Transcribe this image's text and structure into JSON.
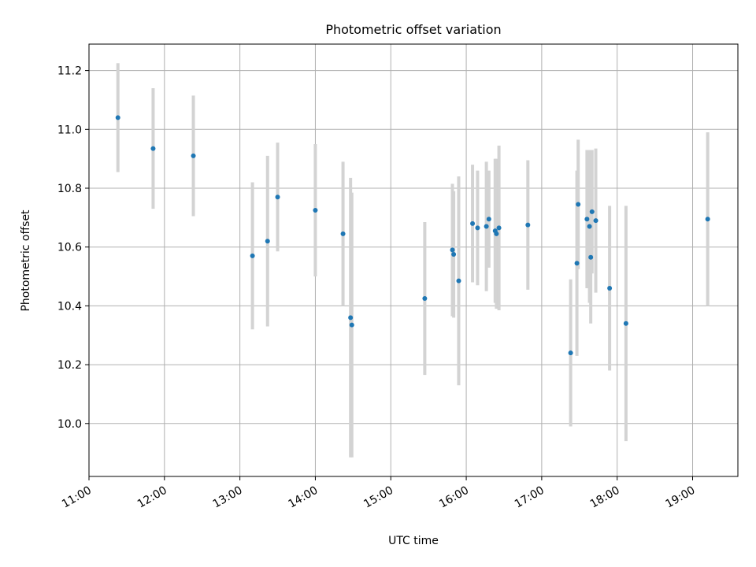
{
  "chart_data": {
    "type": "scatter",
    "title": "Photometric offset variation",
    "xlabel": "UTC time",
    "ylabel": "Photometric offset",
    "xlim": [
      "11:00",
      "19:36"
    ],
    "ylim": [
      9.82,
      11.29
    ],
    "x_ticks": [
      "11:00",
      "12:00",
      "13:00",
      "14:00",
      "15:00",
      "16:00",
      "17:00",
      "18:00",
      "19:00"
    ],
    "y_ticks": [
      10.0,
      10.2,
      10.4,
      10.6,
      10.8,
      11.0,
      11.2
    ],
    "grid": true,
    "point_color": "#1f77b4",
    "errorbar_color": "#d3d3d3",
    "points": [
      {
        "x": "11:23",
        "y": 11.04,
        "err": 0.185
      },
      {
        "x": "11:51",
        "y": 10.935,
        "err": 0.205
      },
      {
        "x": "12:23",
        "y": 10.91,
        "err": 0.205
      },
      {
        "x": "13:10",
        "y": 10.57,
        "err": 0.25
      },
      {
        "x": "13:22",
        "y": 10.62,
        "err": 0.29
      },
      {
        "x": "13:30",
        "y": 10.77,
        "err": 0.185
      },
      {
        "x": "14:00",
        "y": 10.725,
        "err": 0.225
      },
      {
        "x": "14:22",
        "y": 10.645,
        "err": 0.245
      },
      {
        "x": "14:28",
        "y": 10.36,
        "err": 0.475
      },
      {
        "x": "14:29",
        "y": 10.335,
        "err": 0.45
      },
      {
        "x": "15:27",
        "y": 10.425,
        "err": 0.26
      },
      {
        "x": "15:49",
        "y": 10.59,
        "err": 0.225
      },
      {
        "x": "15:50",
        "y": 10.575,
        "err": 0.215
      },
      {
        "x": "15:54",
        "y": 10.485,
        "err": 0.355
      },
      {
        "x": "16:05",
        "y": 10.68,
        "err": 0.2
      },
      {
        "x": "16:09",
        "y": 10.665,
        "err": 0.195
      },
      {
        "x": "16:16",
        "y": 10.67,
        "err": 0.22
      },
      {
        "x": "16:18",
        "y": 10.695,
        "err": 0.165
      },
      {
        "x": "16:23",
        "y": 10.655,
        "err": 0.245
      },
      {
        "x": "16:24",
        "y": 10.645,
        "err": 0.255
      },
      {
        "x": "16:26",
        "y": 10.665,
        "err": 0.28
      },
      {
        "x": "16:49",
        "y": 10.675,
        "err": 0.22
      },
      {
        "x": "17:23",
        "y": 10.24,
        "err": 0.25
      },
      {
        "x": "17:28",
        "y": 10.545,
        "err": 0.315
      },
      {
        "x": "17:29",
        "y": 10.745,
        "err": 0.22
      },
      {
        "x": "17:36",
        "y": 10.695,
        "err": 0.235
      },
      {
        "x": "17:38",
        "y": 10.67,
        "err": 0.26
      },
      {
        "x": "17:39",
        "y": 10.565,
        "err": 0.225
      },
      {
        "x": "17:40",
        "y": 10.72,
        "err": 0.21
      },
      {
        "x": "17:43",
        "y": 10.69,
        "err": 0.245
      },
      {
        "x": "17:54",
        "y": 10.46,
        "err": 0.28
      },
      {
        "x": "18:07",
        "y": 10.34,
        "err": 0.4
      },
      {
        "x": "19:12",
        "y": 10.695,
        "err": 0.295
      }
    ]
  }
}
